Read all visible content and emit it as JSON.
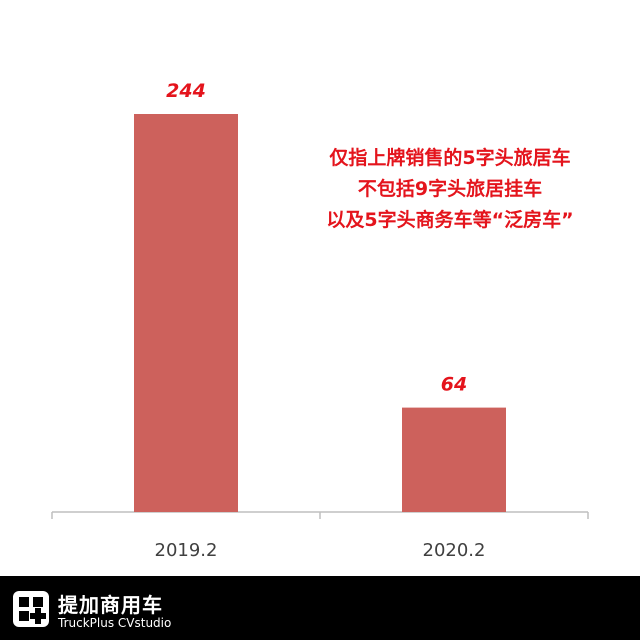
{
  "chart_data": {
    "type": "bar",
    "categories": [
      "2019.2",
      "2020.2"
    ],
    "values": [
      244,
      64
    ],
    "data_labels": [
      "244",
      "64"
    ],
    "title": "",
    "xlabel": "",
    "ylabel": "",
    "ylim": [
      0,
      244
    ],
    "grid": false,
    "legend": "none",
    "bar_color": "#cd615c",
    "data_label_color": "#e4141c"
  },
  "annotation": {
    "lines": [
      "仅指上牌销售的5字头旅居车",
      "不包括9字头旅居挂车",
      "以及5字头商务车等“泛房车”"
    ],
    "color": "#e4141c"
  },
  "footer": {
    "logo_icon": "truck-plus-logo-icon",
    "name": "提加商用车",
    "subtitle": "TruckPlus CVstudio"
  }
}
